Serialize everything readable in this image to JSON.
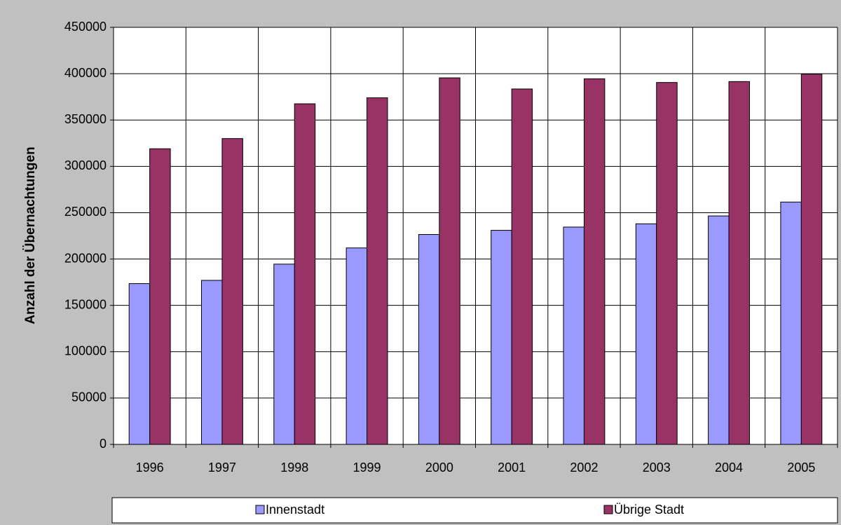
{
  "chart_data": {
    "type": "bar",
    "y_label": "Anzahl der Übernachtungen",
    "categories": [
      "1996",
      "1997",
      "1998",
      "1999",
      "2000",
      "2001",
      "2002",
      "2003",
      "2004",
      "2005"
    ],
    "series": [
      {
        "name": "Innenstadt",
        "color": "#9999ff",
        "values": [
          173500,
          177000,
          194500,
          212000,
          226500,
          231000,
          234500,
          238000,
          246500,
          261500
        ]
      },
      {
        "name": "Übrige Stadt",
        "color": "#993366",
        "values": [
          319000,
          330000,
          367500,
          374000,
          395500,
          383500,
          394500,
          390500,
          391500,
          399500
        ]
      }
    ],
    "ylim": [
      0,
      450000
    ],
    "yticks": [
      0,
      50000,
      100000,
      150000,
      200000,
      250000,
      300000,
      350000,
      400000,
      450000
    ],
    "grid": true
  }
}
